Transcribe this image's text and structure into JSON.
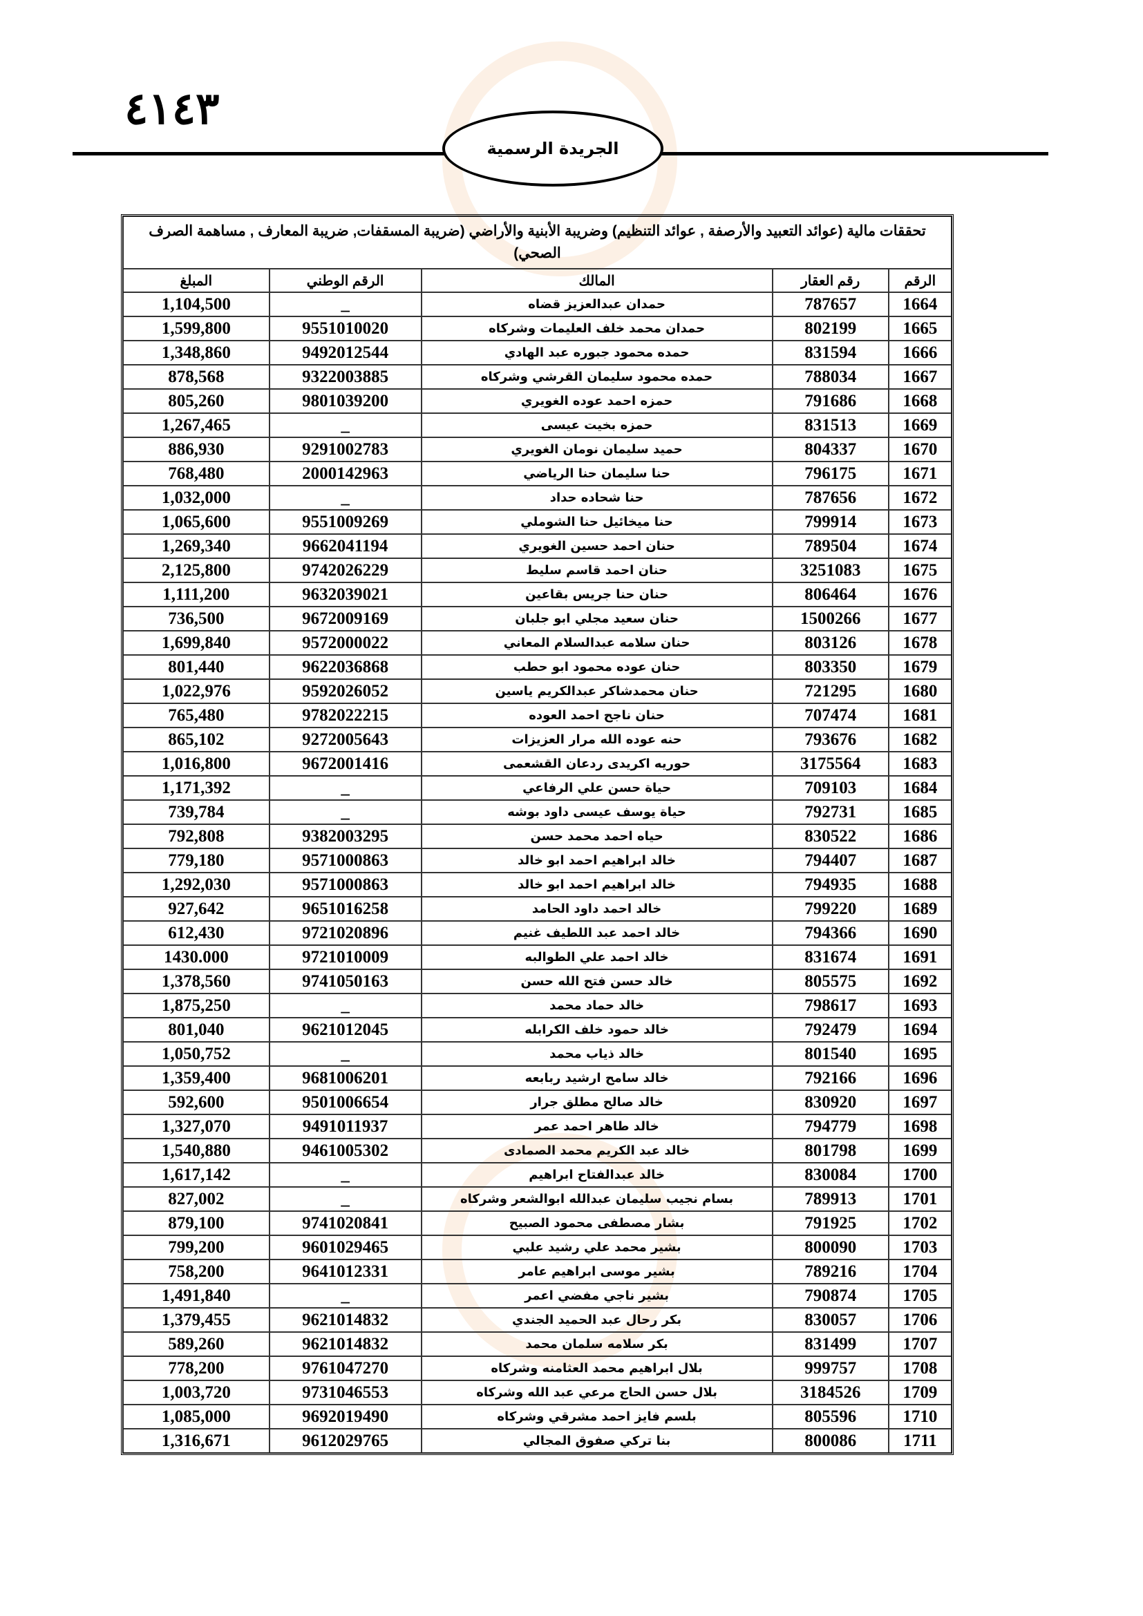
{
  "header": {
    "page_number": "٤١٤٣",
    "publication": "الجريدة الرسمية"
  },
  "table": {
    "title": "تحققات مالية (عوائد التعبيد والأرصفة , عوائد التنظيم) وضريبة الأبنية والأراضي (ضريبة المسقفات, ضريبة المعارف , مساهمة الصرف الصحي)",
    "columns": [
      "الرقم",
      "رقم العقار",
      "المالك",
      "الرقم الوطني",
      "المبلغ"
    ],
    "rows": [
      [
        "1664",
        "787657",
        "حمدان عبدالعزيز   قضاه",
        "_",
        "1,104,500"
      ],
      [
        "1665",
        "802199",
        "حمدان محمد خلف العليمات وشركاه",
        "9551010020",
        "1,599,800"
      ],
      [
        "1666",
        "831594",
        "حمده محمود جبوره عبد الهادي",
        "9492012544",
        "1,348,860"
      ],
      [
        "1667",
        "788034",
        "حمده محمود سليمان القرشي وشركاه",
        "9322003885",
        "878,568"
      ],
      [
        "1668",
        "791686",
        "حمزه احمد عوده الغويري",
        "9801039200",
        "805,260"
      ],
      [
        "1669",
        "831513",
        "حمزه بخيت   عيسى",
        "_",
        "1,267,465"
      ],
      [
        "1670",
        "804337",
        "حميد سليمان نومان الغويري",
        "9291002783",
        "886,930"
      ],
      [
        "1671",
        "796175",
        "حنا سليمان حنا الرياضي",
        "2000142963",
        "768,480"
      ],
      [
        "1672",
        "787656",
        "حنا شحاده   حداد",
        "_",
        "1,032,000"
      ],
      [
        "1673",
        "799914",
        "حنا ميخائيل حنا الشوملي",
        "9551009269",
        "1,065,600"
      ],
      [
        "1674",
        "789504",
        "حنان احمد حسين الغويري",
        "9662041194",
        "1,269,340"
      ],
      [
        "1675",
        "3251083",
        "حنان احمد قاسم سليط",
        "9742026229",
        "2,125,800"
      ],
      [
        "1676",
        "806464",
        "حنان حنا جريس بقاعين",
        "9632039021",
        "1,111,200"
      ],
      [
        "1677",
        "1500266",
        "حنان سعيد مجلي ابو جلبان",
        "9672009169",
        "736,500"
      ],
      [
        "1678",
        "803126",
        "حنان سلامه عبدالسلام المعاني",
        "9572000022",
        "1,699,840"
      ],
      [
        "1679",
        "803350",
        "حنان عوده محمود ابو حطب",
        "9622036868",
        "801,440"
      ],
      [
        "1680",
        "721295",
        "حنان محمدشاكر عبدالكريم ياسين",
        "9592026052",
        "1,022,976"
      ],
      [
        "1681",
        "707474",
        "حنان ناجح احمد العوده",
        "9782022215",
        "765,480"
      ],
      [
        "1682",
        "793676",
        "حنه عوده الله مرار العزيزات",
        "9272005643",
        "865,102"
      ],
      [
        "1683",
        "3175564",
        "حوريه اكريدى ردعان القشعمى",
        "9672001416",
        "1,016,800"
      ],
      [
        "1684",
        "709103",
        "حياة حسن علي الرفاعي",
        "_",
        "1,171,392"
      ],
      [
        "1685",
        "792731",
        "حياة يوسف عيسى داود بوشه",
        "_",
        "739,784"
      ],
      [
        "1686",
        "830522",
        "حياه احمد محمد حسن",
        "9382003295",
        "792,808"
      ],
      [
        "1687",
        "794407",
        "خالد ابراهيم احمد ابو خالد",
        "9571000863",
        "779,180"
      ],
      [
        "1688",
        "794935",
        "خالد ابراهيم احمد ابو خالد",
        "9571000863",
        "1,292,030"
      ],
      [
        "1689",
        "799220",
        "خالد احمد داود الحامد",
        "9651016258",
        "927,642"
      ],
      [
        "1690",
        "794366",
        "خالد احمد عبد اللطيف غنيم",
        "9721020896",
        "612,430"
      ],
      [
        "1691",
        "831674",
        "خالد احمد علي الطوالبه",
        "9721010009",
        "1430.000"
      ],
      [
        "1692",
        "805575",
        "خالد حسن فتح الله حسن",
        "9741050163",
        "1,378,560"
      ],
      [
        "1693",
        "798617",
        "خالد حماد   محمد",
        "_",
        "1,875,250"
      ],
      [
        "1694",
        "792479",
        "خالد حمود خلف الكرابله",
        "9621012045",
        "801,040"
      ],
      [
        "1695",
        "801540",
        "خالد ذياب   محمد",
        "_",
        "1,050,752"
      ],
      [
        "1696",
        "792166",
        "خالد سامح ارشيد ربابعه",
        "9681006201",
        "1,359,400"
      ],
      [
        "1697",
        "830920",
        "خالد صالح مطلق جرار",
        "9501006654",
        "592,600"
      ],
      [
        "1698",
        "794779",
        "خالد طاهر احمد عمر",
        "9491011937",
        "1,327,070"
      ],
      [
        "1699",
        "801798",
        "خالد عبد الكريم محمد الصمادى",
        "9461005302",
        "1,540,880"
      ],
      [
        "1700",
        "830084",
        "خالد عبدالفتاح   ابراهيم",
        "_",
        "1,617,142"
      ],
      [
        "1701",
        "789913",
        "بسام نجيب سليمان عبدالله ابوالشعر وشركاه",
        "_",
        "827,002"
      ],
      [
        "1702",
        "791925",
        "بشار مصطفى محمود الصبيح",
        "9741020841",
        "879,100"
      ],
      [
        "1703",
        "800090",
        "بشير محمد علي رشيد علبي",
        "9601029465",
        "799,200"
      ],
      [
        "1704",
        "789216",
        "بشير موسى ابراهيم عامر",
        "9641012331",
        "758,200"
      ],
      [
        "1705",
        "790874",
        "بشير ناجي مفضي اعمر",
        "_",
        "1,491,840"
      ],
      [
        "1706",
        "830057",
        "بكر رحال عبد الحميد الجندي",
        "9621014832",
        "1,379,455"
      ],
      [
        "1707",
        "831499",
        "بكر سلامه سلمان محمد",
        "9621014832",
        "589,260"
      ],
      [
        "1708",
        "999757",
        "بلال ابراهيم محمد العثامنه وشركاه",
        "9761047270",
        "778,200"
      ],
      [
        "1709",
        "3184526",
        "بلال حسن الحاج مرعي عبد الله وشركاه",
        "9731046553",
        "1,003,720"
      ],
      [
        "1710",
        "805596",
        "بلسم فايز احمد مشرقي وشركاه",
        "9692019490",
        "1,085,000"
      ],
      [
        "1711",
        "800086",
        "بنا تركي صفوق المجالي",
        "9612029765",
        "1,316,671"
      ]
    ]
  }
}
